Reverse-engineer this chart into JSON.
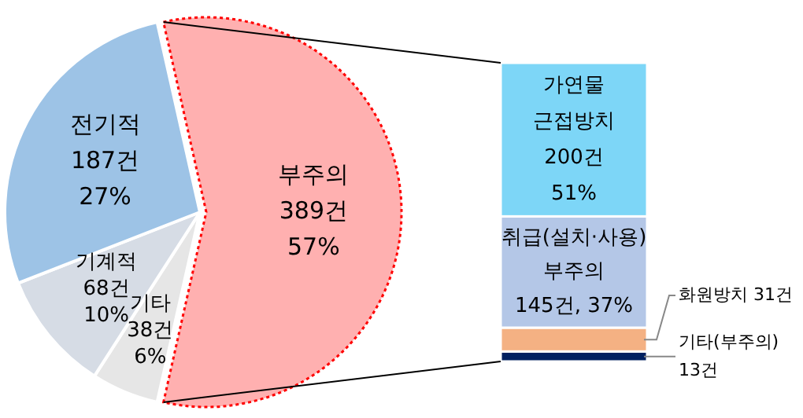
{
  "chart_data": [
    {
      "type": "pie",
      "categories": [
        "부주의",
        "기타",
        "기계적",
        "전기적"
      ],
      "values": [
        389,
        38,
        68,
        187
      ],
      "colors": [
        "#ffb0b0",
        "#e6e6e6",
        "#d6dce5",
        "#9dc3e6"
      ],
      "value_labels": [
        "389건\n57%",
        "38건\n6%",
        "68건\n10%",
        "187건\n27%"
      ]
    },
    {
      "type": "bar",
      "stacked": true,
      "categories": [
        null
      ],
      "series": [
        {
          "name": "기타(부주의)",
          "color": "#002060",
          "values": [
            13
          ],
          "value_labels": [
            "13건"
          ]
        },
        {
          "name": "화원방치",
          "color": "#f4b183",
          "values": [
            31
          ],
          "value_labels": [
            "31건"
          ]
        },
        {
          "name": "취급(설치·사용)\n부주의",
          "color": "#b4c7e7",
          "values": [
            145
          ],
          "value_labels": [
            "145건, 37%"
          ]
        },
        {
          "name": "가연물\n근접방치",
          "color": "#7dd6f7",
          "values": [
            200
          ],
          "value_labels": [
            "200건\n51%"
          ]
        }
      ]
    }
  ]
}
